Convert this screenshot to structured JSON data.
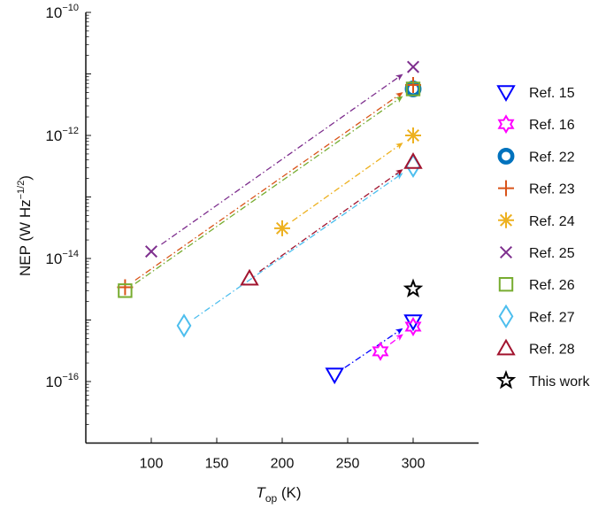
{
  "chart_data": {
    "type": "scatter",
    "xlabel": {
      "main": "T",
      "sub": "op",
      "unit": " (K)"
    },
    "ylabel": {
      "main": "NEP (W Hz",
      "sup": "−1/2",
      "end": ")"
    },
    "xlim": [
      50,
      350
    ],
    "ylim": [
      1e-17,
      1e-10
    ],
    "yscale": "log",
    "grid": false,
    "legend_placement": "right",
    "x_ticks": [
      "100",
      "150",
      "200",
      "250",
      "300"
    ],
    "x_tick_values": [
      100,
      150,
      200,
      250,
      300
    ],
    "y_ticks": [
      {
        "base": "10",
        "exp": "−10",
        "value": 1e-10
      },
      {
        "base": "10",
        "exp": "−12",
        "value": 1e-12
      },
      {
        "base": "10",
        "exp": "−14",
        "value": 1e-14
      },
      {
        "base": "10",
        "exp": "−16",
        "value": 1e-16
      }
    ],
    "series": [
      {
        "name": "Ref. 15",
        "marker": "triangle-down",
        "color": "#0000ff",
        "points": [
          [
            240,
            1.3e-16
          ],
          [
            300,
            9.5e-16
          ]
        ],
        "arrow": true
      },
      {
        "name": "Ref. 16",
        "marker": "hexagram",
        "color": "#ff00ff",
        "points": [
          [
            275,
            3.1e-16
          ],
          [
            300,
            7.8e-16
          ]
        ],
        "arrow": true
      },
      {
        "name": "Ref. 22",
        "marker": "circle",
        "color": "#0072bd",
        "points": [
          [
            300,
            5.7e-12
          ]
        ],
        "arrow": false
      },
      {
        "name": "Ref. 23",
        "marker": "plus",
        "color": "#d95319",
        "points": [
          [
            80,
            3.4e-15
          ],
          [
            300,
            6.6e-12
          ]
        ],
        "arrow": true
      },
      {
        "name": "Ref. 24",
        "marker": "asterisk",
        "color": "#edb120",
        "points": [
          [
            200,
            3.1e-14
          ],
          [
            300,
            1e-12
          ]
        ],
        "arrow": true
      },
      {
        "name": "Ref. 25",
        "marker": "x",
        "color": "#7e2f8e",
        "points": [
          [
            100,
            1.3e-14
          ],
          [
            300,
            1.3e-11
          ]
        ],
        "arrow": true
      },
      {
        "name": "Ref. 26",
        "marker": "square",
        "color": "#77ac30",
        "points": [
          [
            80,
            3e-15
          ],
          [
            300,
            5.7e-12
          ]
        ],
        "arrow": true
      },
      {
        "name": "Ref. 27",
        "marker": "diamond",
        "color": "#4dbeee",
        "points": [
          [
            125,
            8.1e-16
          ],
          [
            300,
            3.2e-13
          ]
        ],
        "arrow": true
      },
      {
        "name": "Ref. 28",
        "marker": "triangle-up",
        "color": "#a2142f",
        "points": [
          [
            175,
            4.7e-15
          ],
          [
            300,
            3.7e-13
          ]
        ],
        "arrow": true
      },
      {
        "name": "This work",
        "marker": "star",
        "color": "#000000",
        "points": [
          [
            300,
            3.2e-15
          ]
        ],
        "arrow": false
      }
    ]
  }
}
